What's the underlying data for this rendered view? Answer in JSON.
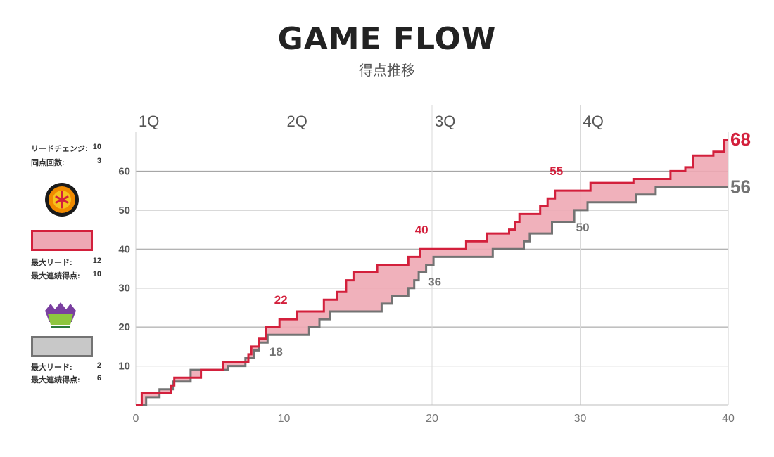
{
  "header": {
    "title": "GAME FLOW",
    "subtitle": "得点推移"
  },
  "summary": {
    "lead_changes_label": "リードチェンジ:",
    "lead_changes": "10",
    "ties_label": "同点回数:",
    "ties": "3"
  },
  "home": {
    "logo_icon": "nagoya-team-logo",
    "color_fill": "#eea8b4",
    "color_line": "#d3203c",
    "max_lead_label": "最大リード:",
    "max_lead": "12",
    "max_run_label": "最大連続得点:",
    "max_run": "10"
  },
  "away": {
    "logo_icon": "hokkaido-team-logo",
    "color_fill": "#c8c8c8",
    "color_line": "#737373",
    "max_lead_label": "最大リード:",
    "max_lead": "2",
    "max_run_label": "最大連続得点:",
    "max_run": "6"
  },
  "chart_data": {
    "type": "line",
    "quarters": [
      "1Q",
      "2Q",
      "3Q",
      "4Q"
    ],
    "xlim": [
      0,
      40
    ],
    "ylim": [
      0,
      70
    ],
    "xticks": [
      0,
      10,
      20,
      30,
      40
    ],
    "yticks": [
      10,
      20,
      30,
      40,
      50,
      60
    ],
    "grid": true,
    "series": [
      {
        "team": "home",
        "color": "#d3203c",
        "final": 68,
        "points": [
          [
            0,
            0
          ],
          [
            0.4,
            0
          ],
          [
            0.4,
            3
          ],
          [
            2.4,
            3
          ],
          [
            2.4,
            5
          ],
          [
            2.6,
            5
          ],
          [
            2.6,
            7
          ],
          [
            4.4,
            7
          ],
          [
            4.4,
            9
          ],
          [
            5.9,
            9
          ],
          [
            5.9,
            11
          ],
          [
            7.6,
            11
          ],
          [
            7.6,
            13
          ],
          [
            7.8,
            13
          ],
          [
            7.8,
            15
          ],
          [
            8.3,
            15
          ],
          [
            8.3,
            17
          ],
          [
            8.8,
            17
          ],
          [
            8.8,
            20
          ],
          [
            9.7,
            20
          ],
          [
            9.7,
            22
          ],
          [
            10.9,
            22
          ],
          [
            10.9,
            24
          ],
          [
            12.7,
            24
          ],
          [
            12.7,
            27
          ],
          [
            13.6,
            27
          ],
          [
            13.6,
            29
          ],
          [
            14.2,
            29
          ],
          [
            14.2,
            32
          ],
          [
            14.7,
            32
          ],
          [
            14.7,
            34
          ],
          [
            16.3,
            34
          ],
          [
            16.3,
            36
          ],
          [
            18.4,
            36
          ],
          [
            18.4,
            38
          ],
          [
            19.2,
            38
          ],
          [
            19.2,
            40
          ],
          [
            22.3,
            40
          ],
          [
            22.3,
            42
          ],
          [
            23.7,
            42
          ],
          [
            23.7,
            44
          ],
          [
            25.2,
            44
          ],
          [
            25.2,
            45
          ],
          [
            25.6,
            45
          ],
          [
            25.6,
            47
          ],
          [
            25.9,
            47
          ],
          [
            25.9,
            49
          ],
          [
            27.3,
            49
          ],
          [
            27.3,
            51
          ],
          [
            27.8,
            51
          ],
          [
            27.8,
            53
          ],
          [
            28.3,
            53
          ],
          [
            28.3,
            55
          ],
          [
            30.7,
            55
          ],
          [
            30.7,
            57
          ],
          [
            33.6,
            57
          ],
          [
            33.6,
            58
          ],
          [
            36.1,
            58
          ],
          [
            36.1,
            60
          ],
          [
            37.1,
            60
          ],
          [
            37.1,
            61
          ],
          [
            37.6,
            61
          ],
          [
            37.6,
            64
          ],
          [
            39.0,
            64
          ],
          [
            39.0,
            65
          ],
          [
            39.7,
            65
          ],
          [
            39.7,
            68
          ],
          [
            40,
            68
          ]
        ],
        "annotations": [
          {
            "x": 9.7,
            "y": 22,
            "label": "22"
          },
          {
            "x": 19.2,
            "y": 40,
            "label": "40"
          },
          {
            "x": 28.3,
            "y": 55,
            "label": "55"
          }
        ]
      },
      {
        "team": "away",
        "color": "#737373",
        "final": 56,
        "points": [
          [
            0,
            0
          ],
          [
            0.7,
            0
          ],
          [
            0.7,
            2
          ],
          [
            1.6,
            2
          ],
          [
            1.6,
            4
          ],
          [
            2.5,
            4
          ],
          [
            2.5,
            6
          ],
          [
            3.7,
            6
          ],
          [
            3.7,
            9
          ],
          [
            6.2,
            9
          ],
          [
            6.2,
            10
          ],
          [
            7.4,
            10
          ],
          [
            7.4,
            12
          ],
          [
            8.0,
            12
          ],
          [
            8.0,
            14
          ],
          [
            8.3,
            14
          ],
          [
            8.3,
            16
          ],
          [
            8.9,
            16
          ],
          [
            8.9,
            18
          ],
          [
            11.7,
            18
          ],
          [
            11.7,
            20
          ],
          [
            12.4,
            20
          ],
          [
            12.4,
            22
          ],
          [
            13.1,
            22
          ],
          [
            13.1,
            24
          ],
          [
            16.6,
            24
          ],
          [
            16.6,
            26
          ],
          [
            17.3,
            26
          ],
          [
            17.3,
            28
          ],
          [
            18.4,
            28
          ],
          [
            18.4,
            30
          ],
          [
            18.8,
            30
          ],
          [
            18.8,
            32
          ],
          [
            19.1,
            32
          ],
          [
            19.1,
            34
          ],
          [
            19.6,
            34
          ],
          [
            19.6,
            36
          ],
          [
            20.1,
            36
          ],
          [
            20.1,
            38
          ],
          [
            24.1,
            38
          ],
          [
            24.1,
            40
          ],
          [
            26.2,
            40
          ],
          [
            26.2,
            42
          ],
          [
            26.6,
            42
          ],
          [
            26.6,
            44
          ],
          [
            28.1,
            44
          ],
          [
            28.1,
            47
          ],
          [
            29.6,
            47
          ],
          [
            29.6,
            50
          ],
          [
            30.5,
            50
          ],
          [
            30.5,
            52
          ],
          [
            33.8,
            52
          ],
          [
            33.8,
            54
          ],
          [
            35.1,
            54
          ],
          [
            35.1,
            56
          ],
          [
            40,
            56
          ]
        ],
        "annotations": [
          {
            "x": 8.9,
            "y": 18,
            "label": "18"
          },
          {
            "x": 19.6,
            "y": 36,
            "label": "36"
          },
          {
            "x": 29.6,
            "y": 50,
            "label": "50"
          }
        ]
      }
    ]
  }
}
